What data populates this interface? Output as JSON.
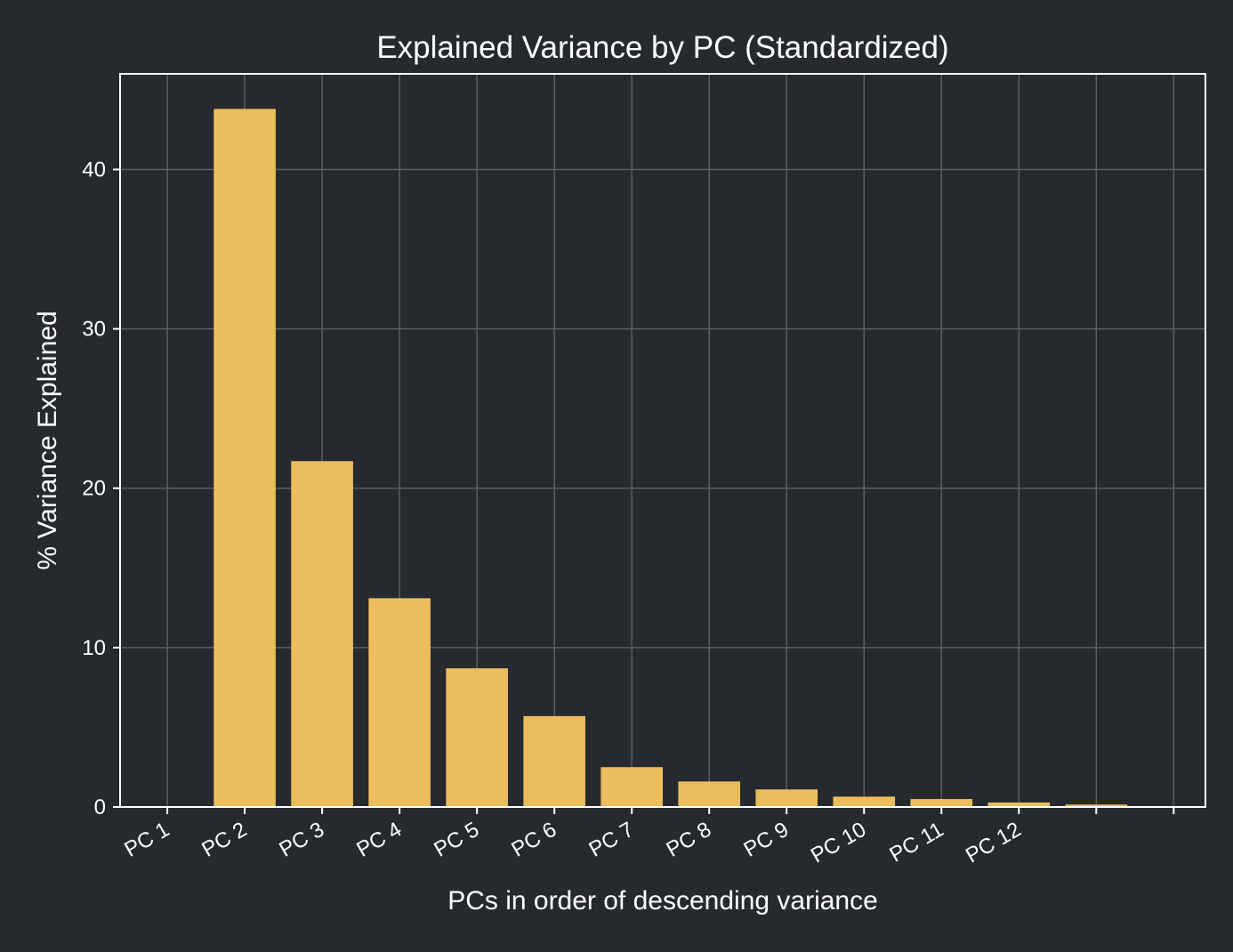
{
  "chart_data": {
    "type": "bar",
    "title": "Explained Variance by PC (Standardized)",
    "xlabel": "PCs in order of descending variance",
    "ylabel": "% Variance Explained",
    "categories": [
      "PC 1",
      "PC 2",
      "PC 3",
      "PC 4",
      "PC 5",
      "PC 6",
      "PC 7",
      "PC 8",
      "PC 9",
      "PC 10",
      "PC 11",
      "PC 12"
    ],
    "x_tick_labels": [
      "PC 1",
      "PC 2",
      "PC 3",
      "PC 4",
      "PC 5",
      "PC 6",
      "PC 7",
      "PC 8",
      "PC 9",
      "PC 10",
      "PC 11",
      "PC 12",
      "",
      ""
    ],
    "values": [
      43.8,
      21.7,
      13.1,
      8.7,
      5.7,
      2.5,
      1.6,
      1.1,
      0.65,
      0.5,
      0.28,
      0.15
    ],
    "ylim": [
      0,
      46
    ],
    "yticks": [
      0,
      10,
      20,
      30,
      40
    ],
    "grid": true,
    "bar_color": "#ecbd5c",
    "background_color": "#262a2f",
    "grid_color": "#5a5e63",
    "text_color": "#ffffff"
  }
}
